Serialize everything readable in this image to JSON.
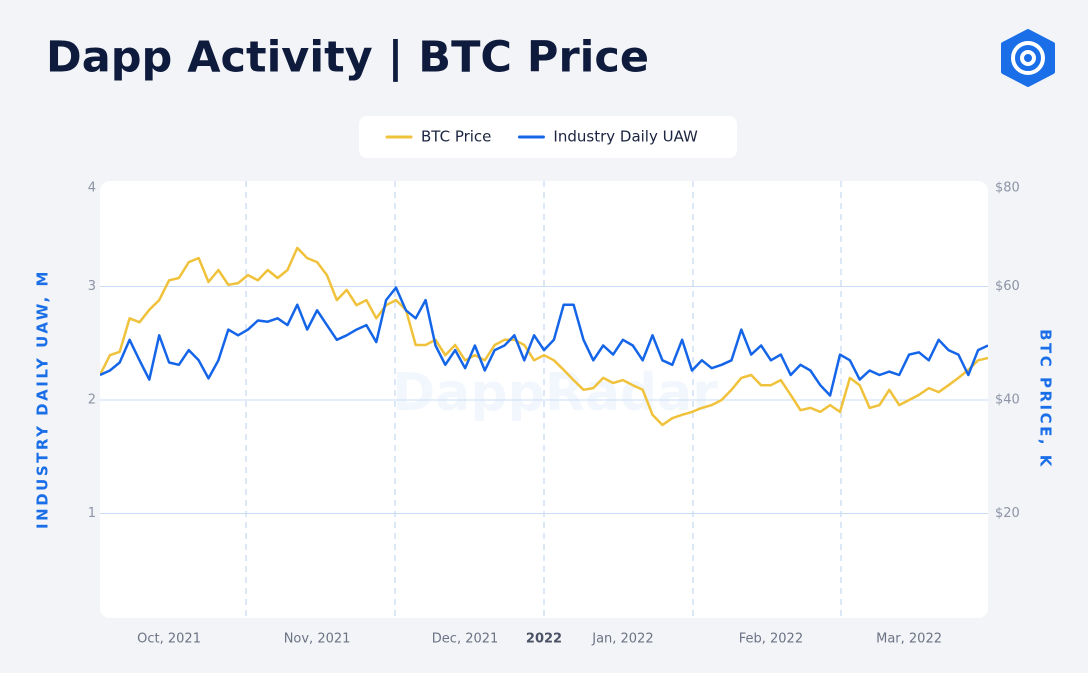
{
  "chart_data": {
    "type": "line",
    "title": "Dapp Activity | BTC Price",
    "watermark": "DappRadar",
    "ylabel": "INDUSTRY DAILY UAW, M",
    "y2label": "BTC PRICE, K",
    "categories": [
      null,
      null,
      null,
      null,
      null,
      null,
      null,
      "Oct, 2021",
      null,
      null,
      null,
      null,
      null,
      null,
      null,
      null,
      null,
      null,
      null,
      null,
      null,
      null,
      "Nov, 2021",
      null,
      null,
      null,
      null,
      null,
      null,
      null,
      null,
      null,
      null,
      null,
      null,
      null,
      null,
      "Dec, 2021",
      null,
      null,
      null,
      null,
      null,
      null,
      null,
      "2022",
      null,
      null,
      null,
      null,
      null,
      null,
      null,
      "Jan, 2022",
      null,
      null,
      null,
      null,
      null,
      null,
      null,
      null,
      null,
      null,
      null,
      null,
      null,
      null,
      "Feb, 2022",
      null,
      null,
      null,
      null,
      null,
      null,
      null,
      null,
      null,
      null,
      null,
      null,
      null,
      "Mar, 2022",
      null,
      null,
      null,
      null,
      null,
      null,
      null,
      null
    ],
    "ylim": [
      0,
      4
    ],
    "yticks": [
      1,
      2,
      3,
      4
    ],
    "y2lim": [
      0,
      80
    ],
    "y2ticks": [
      {
        "value": 20,
        "label": "$20"
      },
      {
        "value": 40,
        "label": "$40"
      },
      {
        "value": 60,
        "label": "$60"
      },
      {
        "value": 80,
        "label": "$80"
      }
    ],
    "grid": true,
    "legend": "top",
    "series": [
      {
        "name": "BTC Price",
        "color": "#f0c23b",
        "axis": "y2",
        "values": [
          44.4,
          47.9,
          48.5,
          54.4,
          53.7,
          55.9,
          57.6,
          61.1,
          61.5,
          64.3,
          65.0,
          60.8,
          62.9,
          60.3,
          60.6,
          62.0,
          61.1,
          62.9,
          61.5,
          62.9,
          66.8,
          65.0,
          64.3,
          62.0,
          57.6,
          59.4,
          56.7,
          57.6,
          54.4,
          56.7,
          57.6,
          55.9,
          49.7,
          49.7,
          50.6,
          47.9,
          49.7,
          47.0,
          47.9,
          47.0,
          49.7,
          50.6,
          50.6,
          49.7,
          47.0,
          47.9,
          47.0,
          45.3,
          43.5,
          41.8,
          42.1,
          43.9,
          43.0,
          43.5,
          42.6,
          41.8,
          37.4,
          35.6,
          36.8,
          37.4,
          37.9,
          38.6,
          39.1,
          40.0,
          41.8,
          43.9,
          44.4,
          42.6,
          42.6,
          43.5,
          40.9,
          38.2,
          38.6,
          37.9,
          39.1,
          37.9,
          43.9,
          42.6,
          38.6,
          39.1,
          41.8,
          39.1,
          40.0,
          40.9,
          42.1,
          41.4,
          42.6,
          43.9,
          45.3,
          47.0,
          47.4
        ]
      },
      {
        "name": "Industry Daily UAW",
        "color": "#1565e8",
        "values": [
          2.22,
          2.26,
          2.33,
          2.53,
          2.35,
          2.18,
          2.57,
          2.33,
          2.31,
          2.44,
          2.35,
          2.19,
          2.35,
          2.62,
          2.57,
          2.62,
          2.7,
          2.69,
          2.72,
          2.66,
          2.84,
          2.62,
          2.79,
          2.66,
          2.53,
          2.57,
          2.62,
          2.66,
          2.51,
          2.88,
          2.99,
          2.79,
          2.72,
          2.88,
          2.48,
          2.31,
          2.44,
          2.28,
          2.48,
          2.26,
          2.44,
          2.48,
          2.57,
          2.35,
          2.57,
          2.44,
          2.53,
          2.84,
          2.84,
          2.53,
          2.35,
          2.48,
          2.4,
          2.53,
          2.48,
          2.35,
          2.57,
          2.35,
          2.31,
          2.53,
          2.26,
          2.35,
          2.28,
          2.31,
          2.35,
          2.62,
          2.4,
          2.48,
          2.35,
          2.4,
          2.22,
          2.31,
          2.26,
          2.13,
          2.04,
          2.4,
          2.35,
          2.18,
          2.26,
          2.22,
          2.25,
          2.22,
          2.4,
          2.42,
          2.35,
          2.53,
          2.44,
          2.4,
          2.22,
          2.44,
          2.48
        ]
      }
    ]
  }
}
